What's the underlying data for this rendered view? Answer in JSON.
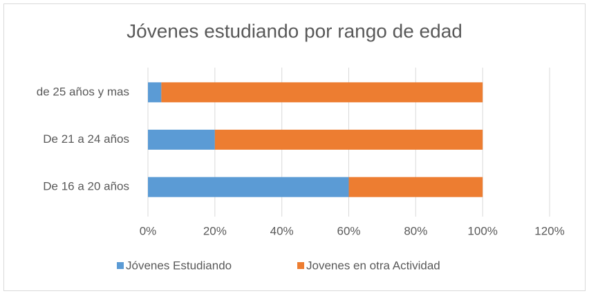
{
  "chart_data": {
    "type": "stacked-barh",
    "title": "Jóvenes estudiando por rango de edad",
    "categories": [
      "de 25 años y mas",
      "De 21 a 24 años",
      "De 16 a 20 años"
    ],
    "series": [
      {
        "name": "Jóvenes Estudiando",
        "color": "#5b9bd5",
        "values": [
          4,
          20,
          60
        ]
      },
      {
        "name": "Jovenes en otra Actividad",
        "color": "#ed7d31",
        "values": [
          96,
          80,
          40
        ]
      }
    ],
    "xlim": [
      0,
      120
    ],
    "xticks": [
      {
        "value": 0,
        "label": "0%"
      },
      {
        "value": 20,
        "label": "20%"
      },
      {
        "value": 40,
        "label": "40%"
      },
      {
        "value": 60,
        "label": "60%"
      },
      {
        "value": 80,
        "label": "80%"
      },
      {
        "value": 100,
        "label": "100%"
      },
      {
        "value": 120,
        "label": "120%"
      }
    ],
    "grid": true,
    "legend": "bottom"
  }
}
